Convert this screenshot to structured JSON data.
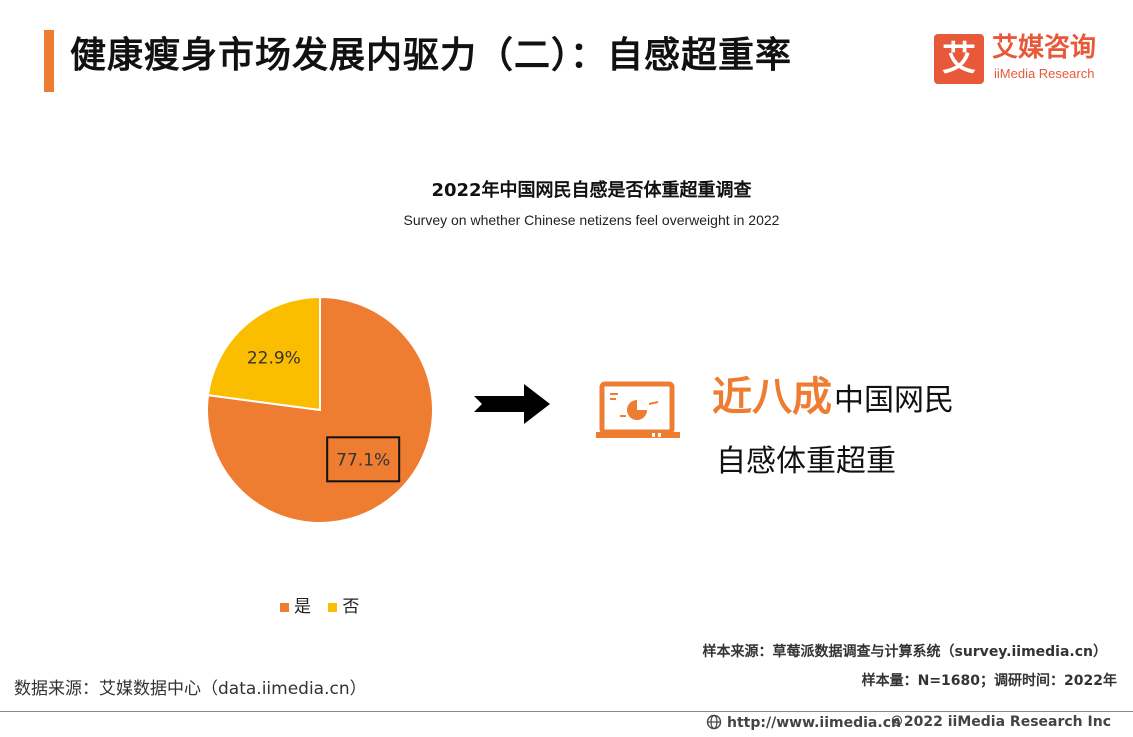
{
  "header": {
    "title": "健康瘦身市场发展内驱力（二）：自感超重率",
    "logo_mark": "艾",
    "logo_cn": "艾媒咨询",
    "logo_en": "iiMedia Research"
  },
  "chart_data": {
    "type": "pie",
    "title": "2022年中国网民自感是否体重超重调查",
    "subtitle": "Survey on whether Chinese netizens feel overweight in 2022",
    "categories": [
      "是",
      "否"
    ],
    "values": [
      77.1,
      22.9
    ],
    "labels": [
      "77.1%",
      "22.9%"
    ],
    "colors": [
      "#ee7d31",
      "#fbbd00"
    ],
    "highlighted": "77.1%",
    "legend_position": "bottom"
  },
  "callout": {
    "highlight": "近八成",
    "line1_rest": "中国网民",
    "line2": "自感体重超重",
    "icon": "monitor-pie-chart-icon"
  },
  "notes": {
    "sample_source": "样本来源：草莓派数据调查与计算系统（survey.iimedia.cn）",
    "sample_size": "样本量：N=1680；调研时间：2022年",
    "data_source": "数据来源：艾媒数据中心（data.iimedia.cn）"
  },
  "footer": {
    "url": "http://www.iimedia.cn",
    "copyright": "©2022  iiMedia Research  Inc",
    "icon": "globe-icon"
  }
}
